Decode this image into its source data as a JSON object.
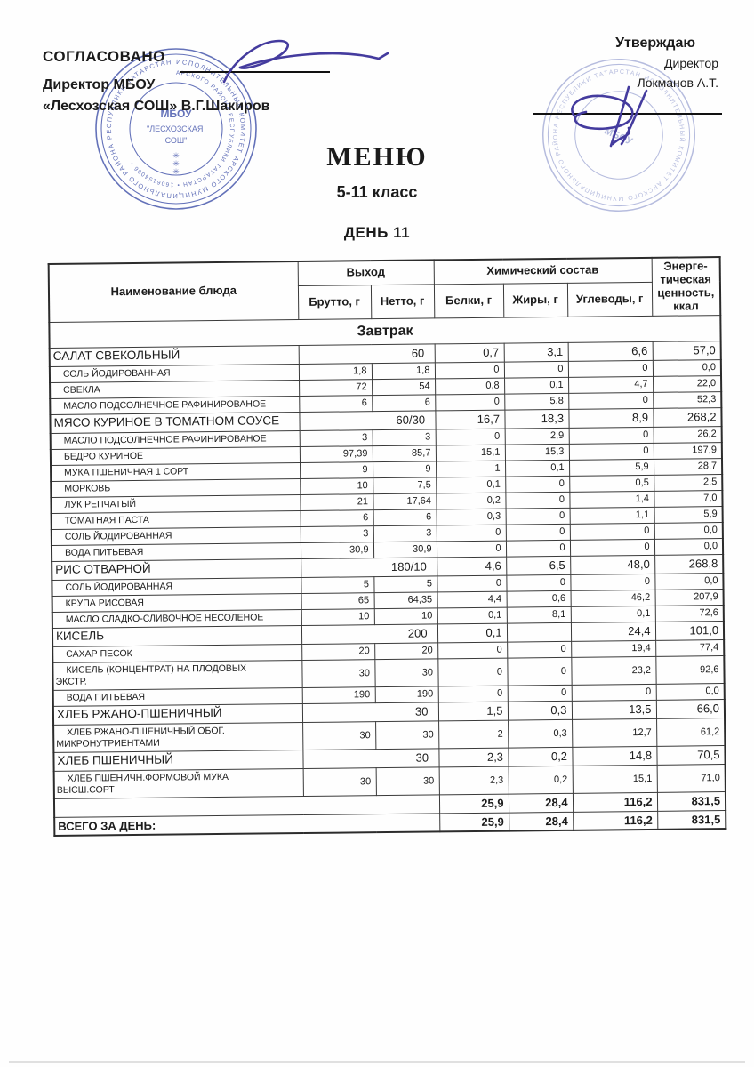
{
  "approvals": {
    "left": {
      "title": "СОГЛАСОВАНО",
      "line2": "Директор МБОУ",
      "line3": "«Лесхозская СОШ»  В.Г.Шакиров"
    },
    "right": {
      "title": "Утверждаю",
      "line2": "Директор",
      "line3": "Локманов А.Т."
    }
  },
  "title": "МЕНЮ",
  "subtitle": "5-11 класс",
  "day": "ДЕНЬ 11",
  "stamps": {
    "left": {
      "ring_outer": "ИСПОЛНИТЕЛЬНЫЙ КОМИТЕТ АРСКОГО МУНИЦИПАЛЬНОГО РАЙОНА РЕСПУБЛИКИ ТАТАРСТАН",
      "ring_inner": "АРСКОГО РАЙОНА РЕСПУБЛИКИ ТАТАРСТАН • 1606154006 •",
      "center1": "МБОУ",
      "center2": "\"ЛЕСХОЗСКАЯ",
      "center3": "СОШ\""
    },
    "right": {
      "ring_outer": "ИСПОЛНИТЕЛЬНЫЙ КОМИТЕТ АРСКОГО МУНИЦИПАЛЬНОГО РАЙОНА РЕСПУБЛИКИ ТАТАРСТАН",
      "center1": "МБОУ"
    }
  },
  "table": {
    "headers": {
      "name": "Наименование блюда",
      "output_group": "Выход",
      "brutto": "Брутто, г",
      "netto": "Нетто, г",
      "chem_group": "Химический состав",
      "protein": "Белки, г",
      "fat": "Жиры, г",
      "carbs": "Углеводы, г",
      "energy": "Энерге-\nтическая\nценность,\nккал"
    },
    "section": "Завтрак",
    "rows": [
      {
        "type": "dish",
        "name": "САЛАТ СВЕКОЛЬНЫЙ",
        "out": "60",
        "p": "0,7",
        "f": "3,1",
        "c": "6,6",
        "e": "57,0"
      },
      {
        "type": "ingredient",
        "name": "СОЛЬ  ЙОДИРОВАННАЯ",
        "b": "1,8",
        "n": "1,8",
        "p": "0",
        "f": "0",
        "c": "0",
        "e": "0,0"
      },
      {
        "type": "ingredient",
        "name": "СВЕКЛА",
        "b": "72",
        "n": "54",
        "p": "0,8",
        "f": "0,1",
        "c": "4,7",
        "e": "22,0"
      },
      {
        "type": "ingredient",
        "name": "МАСЛО ПОДСОЛНЕЧНОЕ РАФИНИРОВАНОЕ",
        "b": "6",
        "n": "6",
        "p": "0",
        "f": "5,8",
        "c": "0",
        "e": "52,3"
      },
      {
        "type": "dish",
        "name": "МЯСО КУРИНОЕ В ТОМАТНОМ СОУСЕ",
        "out": "60/30",
        "p": "16,7",
        "f": "18,3",
        "c": "8,9",
        "e": "268,2"
      },
      {
        "type": "ingredient",
        "name": "МАСЛО ПОДСОЛНЕЧНОЕ РАФИНИРОВАНОЕ",
        "b": "3",
        "n": "3",
        "p": "0",
        "f": "2,9",
        "c": "0",
        "e": "26,2"
      },
      {
        "type": "ingredient",
        "name": "БЕДРО КУРИНОЕ",
        "b": "97,39",
        "n": "85,7",
        "p": "15,1",
        "f": "15,3",
        "c": "0",
        "e": "197,9"
      },
      {
        "type": "ingredient",
        "name": "МУКА ПШЕНИЧНАЯ 1 СОРТ",
        "b": "9",
        "n": "9",
        "p": "1",
        "f": "0,1",
        "c": "5,9",
        "e": "28,7"
      },
      {
        "type": "ingredient",
        "name": "МОРКОВЬ",
        "b": "10",
        "n": "7,5",
        "p": "0,1",
        "f": "0",
        "c": "0,5",
        "e": "2,5"
      },
      {
        "type": "ingredient",
        "name": "ЛУК РЕПЧАТЫЙ",
        "b": "21",
        "n": "17,64",
        "p": "0,2",
        "f": "0",
        "c": "1,4",
        "e": "7,0"
      },
      {
        "type": "ingredient",
        "name": "ТОМАТНАЯ ПАСТА",
        "b": "6",
        "n": "6",
        "p": "0,3",
        "f": "0",
        "c": "1,1",
        "e": "5,9"
      },
      {
        "type": "ingredient",
        "name": "СОЛЬ  ЙОДИРОВАННАЯ",
        "b": "3",
        "n": "3",
        "p": "0",
        "f": "0",
        "c": "0",
        "e": "0,0"
      },
      {
        "type": "ingredient",
        "name": "ВОДА ПИТЬЕВАЯ",
        "b": "30,9",
        "n": "30,9",
        "p": "0",
        "f": "0",
        "c": "0",
        "e": "0,0"
      },
      {
        "type": "dish",
        "name": "РИС ОТВАРНОЙ",
        "out": "180/10",
        "p": "4,6",
        "f": "6,5",
        "c": "48,0",
        "e": "268,8"
      },
      {
        "type": "ingredient",
        "name": "СОЛЬ  ЙОДИРОВАННАЯ",
        "b": "5",
        "n": "5",
        "p": "0",
        "f": "0",
        "c": "0",
        "e": "0,0"
      },
      {
        "type": "ingredient",
        "name": "КРУПА РИСОВАЯ",
        "b": "65",
        "n": "64,35",
        "p": "4,4",
        "f": "0,6",
        "c": "46,2",
        "e": "207,9"
      },
      {
        "type": "ingredient",
        "name": "МАСЛО СЛАДКО-СЛИВОЧНОЕ НЕСОЛЕНОЕ",
        "b": "10",
        "n": "10",
        "p": "0,1",
        "f": "8,1",
        "c": "0,1",
        "e": "72,6"
      },
      {
        "type": "dish",
        "name": "КИСЕЛЬ",
        "out": "200",
        "p": "0,1",
        "f": "",
        "c": "24,4",
        "e": "101,0"
      },
      {
        "type": "ingredient",
        "name": "САХАР ПЕСОК",
        "b": "20",
        "n": "20",
        "p": "0",
        "f": "0",
        "c": "19,4",
        "e": "77,4"
      },
      {
        "type": "ingredient",
        "tall": true,
        "name": "КИСЕЛЬ (КОНЦЕНТРАТ) НА ПЛОДОВЫХ\nЭКСТР.",
        "b": "30",
        "n": "30",
        "p": "0",
        "f": "0",
        "c": "23,2",
        "e": "92,6"
      },
      {
        "type": "ingredient",
        "name": "ВОДА ПИТЬЕВАЯ",
        "b": "190",
        "n": "190",
        "p": "0",
        "f": "0",
        "c": "0",
        "e": "0,0"
      },
      {
        "type": "dish",
        "name": "ХЛЕБ РЖАНО-ПШЕНИЧНЫЙ",
        "out": "30",
        "p": "1,5",
        "f": "0,3",
        "c": "13,5",
        "e": "66,0"
      },
      {
        "type": "ingredient",
        "tall": true,
        "name": "ХЛЕБ РЖАНО-ПШЕНИЧНЫЙ ОБОГ.\nМИКРОНУТРИЕНТАМИ",
        "b": "30",
        "n": "30",
        "p": "2",
        "f": "0,3",
        "c": "12,7",
        "e": "61,2"
      },
      {
        "type": "dish",
        "name": "ХЛЕБ ПШЕНИЧНЫЙ",
        "out": "30",
        "p": "2,3",
        "f": "0,2",
        "c": "14,8",
        "e": "70,5"
      },
      {
        "type": "ingredient",
        "tall": true,
        "name": "ХЛЕБ ПШЕНИЧН.ФОРМОВОЙ МУКА\nВЫСШ.СОРТ",
        "b": "30",
        "n": "30",
        "p": "2,3",
        "f": "0,2",
        "c": "15,1",
        "e": "71,0"
      }
    ],
    "totals": [
      {
        "label": "",
        "p": "25,9",
        "f": "28,4",
        "c": "116,2",
        "e": "831,5"
      },
      {
        "label": "ВСЕГО ЗА ДЕНЬ:",
        "p": "25,9",
        "f": "28,4",
        "c": "116,2",
        "e": "831,5"
      }
    ]
  },
  "colors": {
    "stamp_blue": "#4354ab",
    "signature_ink": "#443b9e",
    "table_border": "#3a3a3a"
  }
}
